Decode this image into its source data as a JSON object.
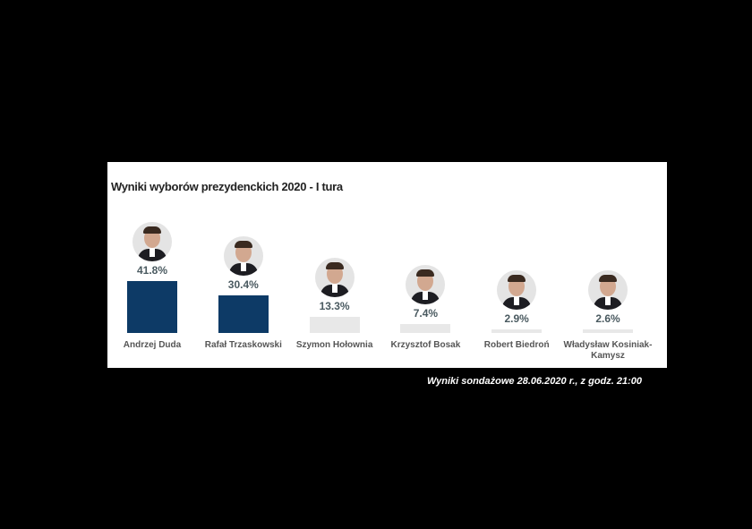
{
  "chart_data": {
    "type": "bar",
    "title": "Wyniki wyborów prezydenckich 2020 - I tura",
    "categories": [
      "Andrzej Duda",
      "Rafał Trzaskowski",
      "Szymon Hołownia",
      "Krzysztof Bosak",
      "Robert Biedroń",
      "Władysław Kosiniak-Kamysz"
    ],
    "values": [
      41.8,
      30.4,
      13.3,
      7.4,
      2.9,
      2.6
    ],
    "value_labels": [
      "41.8%",
      "30.4%",
      "13.3%",
      "7.4%",
      "2.9%",
      "2.6%"
    ],
    "colors": [
      "#0d3a66",
      "#0d3a66",
      "#e8e8e8",
      "#e8e8e8",
      "#e8e8e8",
      "#e8e8e8"
    ],
    "xlabel": "",
    "ylabel": "",
    "grid": false,
    "icons": [
      "candidate-photo"
    ]
  },
  "caption": "Wyniki sondażowe 28.06.2020 r., z godz. 21:00"
}
